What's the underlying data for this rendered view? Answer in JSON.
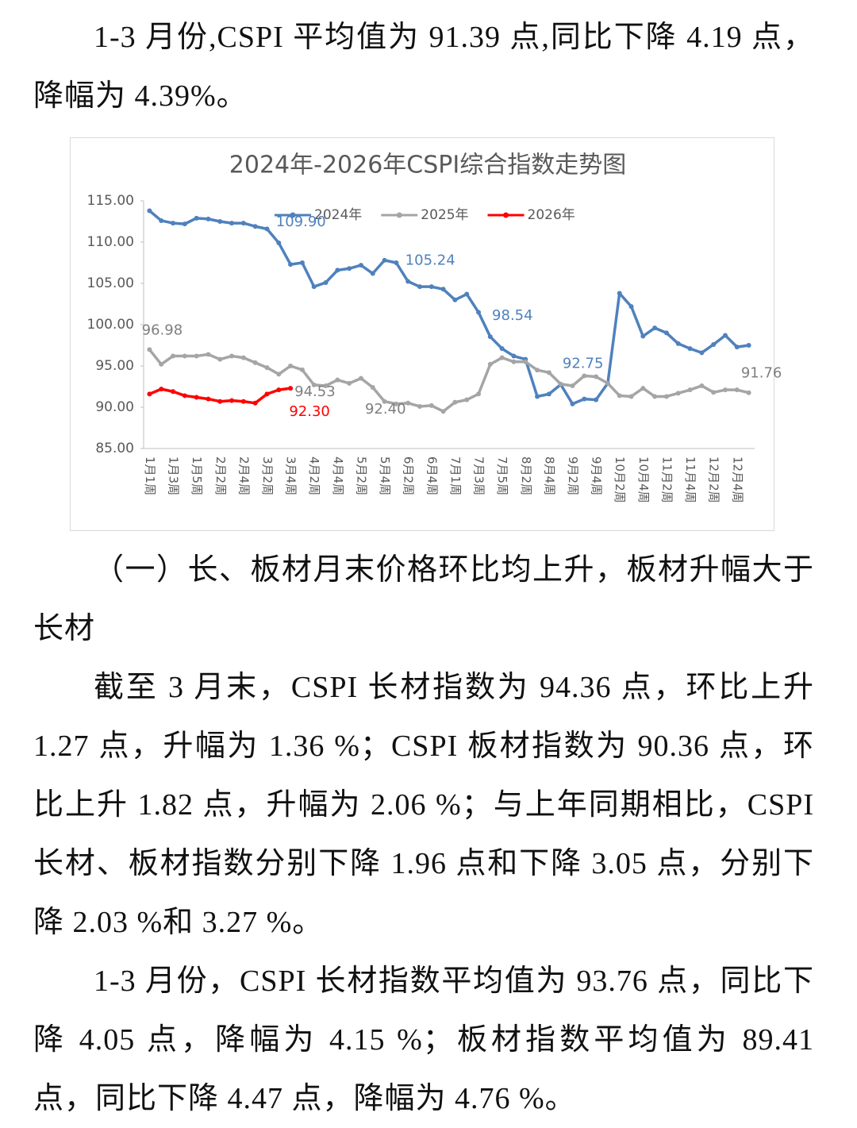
{
  "paragraphs_top": [
    "1-3 月份,CSPI 平均值为 91.39  点,同比下降 4.19 点，降幅为 4.39%。"
  ],
  "chart_data": {
    "type": "line",
    "title": "2024年-2026年CSPI综合指数走势图",
    "categories": [
      "1月1周",
      null,
      "1月3周",
      null,
      "1月5周",
      null,
      "2月2周",
      null,
      "2月4周",
      null,
      "3月2周",
      null,
      "3月4周",
      null,
      "4月2周",
      null,
      "4月4周",
      null,
      "5月2周",
      null,
      "5月4周",
      null,
      "6月2周",
      null,
      "6月4周",
      null,
      "7月1周",
      null,
      "7月3周",
      null,
      "7月5周",
      null,
      "8月2周",
      null,
      "8月4周",
      null,
      "9月2周",
      null,
      "9月4周",
      null,
      "10月2周",
      null,
      "10月4周",
      null,
      "11月2周",
      null,
      "11月4周",
      null,
      "12月2周",
      null,
      "12月4周",
      null
    ],
    "series": [
      {
        "name": "2024年",
        "color": "#4f81bd",
        "values": [
          113.8,
          112.6,
          112.3,
          112.2,
          112.9,
          112.8,
          112.5,
          112.3,
          112.3,
          111.9,
          111.6,
          109.9,
          107.3,
          107.5,
          104.6,
          105.1,
          106.6,
          106.8,
          107.2,
          106.2,
          107.8,
          107.5,
          105.24,
          104.6,
          104.6,
          104.3,
          103.0,
          103.7,
          101.5,
          98.54,
          97.1,
          96.2,
          95.8,
          91.3,
          91.6,
          92.75,
          90.4,
          91.0,
          90.9,
          92.9,
          103.8,
          102.2,
          98.6,
          99.6,
          99.0,
          97.7,
          97.1,
          96.6,
          97.6,
          98.7,
          97.3,
          97.5
        ],
        "value_labels": [
          null,
          null,
          null,
          null,
          null,
          null,
          null,
          null,
          null,
          null,
          null,
          "109.90",
          null,
          null,
          null,
          null,
          null,
          null,
          null,
          null,
          null,
          null,
          "105.24",
          null,
          null,
          null,
          null,
          null,
          null,
          "98.54",
          null,
          null,
          null,
          null,
          null,
          "92.75",
          null,
          null,
          null,
          null,
          null,
          null,
          null,
          null,
          null,
          null,
          null,
          null,
          null,
          null,
          null,
          null
        ]
      },
      {
        "name": "2025年",
        "color": "#a5a5a5",
        "values": [
          96.98,
          95.2,
          96.2,
          96.2,
          96.2,
          96.4,
          95.8,
          96.2,
          96.0,
          95.4,
          94.8,
          94.0,
          95.0,
          94.53,
          92.7,
          92.6,
          93.3,
          92.9,
          93.5,
          92.4,
          90.7,
          90.4,
          90.5,
          90.1,
          90.2,
          89.5,
          90.6,
          90.9,
          91.6,
          95.2,
          96.0,
          95.5,
          95.5,
          94.5,
          94.2,
          92.8,
          92.6,
          93.8,
          93.7,
          92.9,
          91.4,
          91.3,
          92.3,
          91.3,
          91.3,
          91.7,
          92.1,
          92.6,
          91.8,
          92.1,
          92.1,
          91.76
        ],
        "value_labels": [
          "96.98",
          null,
          null,
          null,
          null,
          null,
          null,
          null,
          null,
          null,
          null,
          null,
          null,
          "94.53",
          null,
          null,
          null,
          null,
          null,
          "92.40",
          null,
          null,
          null,
          null,
          null,
          null,
          null,
          null,
          null,
          null,
          null,
          null,
          null,
          null,
          null,
          null,
          null,
          null,
          null,
          null,
          null,
          null,
          null,
          null,
          null,
          null,
          null,
          null,
          null,
          null,
          null,
          "91.76"
        ]
      },
      {
        "name": "2026年",
        "color": "#ff0000",
        "values": [
          91.6,
          92.2,
          91.9,
          91.4,
          91.2,
          91.0,
          90.7,
          90.8,
          90.7,
          90.5,
          91.6,
          92.1,
          92.3,
          null,
          null,
          null,
          null,
          null,
          null,
          null,
          null,
          null,
          null,
          null,
          null,
          null,
          null,
          null,
          null,
          null,
          null,
          null,
          null,
          null,
          null,
          null,
          null,
          null,
          null,
          null,
          null,
          null,
          null,
          null,
          null,
          null,
          null,
          null,
          null,
          null,
          null,
          null
        ],
        "value_labels": [
          null,
          null,
          null,
          null,
          null,
          null,
          null,
          null,
          null,
          null,
          null,
          null,
          "92.30",
          null,
          null,
          null,
          null,
          null,
          null,
          null,
          null,
          null,
          null,
          null,
          null,
          null,
          null,
          null,
          null,
          null,
          null,
          null,
          null,
          null,
          null,
          null,
          null,
          null,
          null,
          null,
          null,
          null,
          null,
          null,
          null,
          null,
          null,
          null,
          null,
          null,
          null,
          null
        ]
      }
    ],
    "ylim": [
      85,
      115
    ],
    "yticks": [
      {
        "value": 85,
        "label": "85.00"
      },
      {
        "value": 90,
        "label": "90.00"
      },
      {
        "value": 95,
        "label": "95.00"
      },
      {
        "value": 100,
        "label": "100.00"
      },
      {
        "value": 105,
        "label": "105.00"
      },
      {
        "value": 110,
        "label": "110.00"
      },
      {
        "value": 115,
        "label": "115.00"
      }
    ],
    "grid": false,
    "legend": "top"
  },
  "paragraphs_bottom": [
    "（一）长、板材月末价格环比均上升，板材升幅大于长材",
    "截至 3 月末，CSPI 长材指数为 94.36  点，环比上升 1.27  点，升幅为 1.36 %；CSPI 板材指数为 90.36 点，环比上升 1.82 点，升幅为 2.06 %；与上年同期相比，CSPI 长材、板材指数分别下降 1.96 点和下降 3.05 点，分别下降 2.03 %和 3.27 %。",
    "1-3 月份，CSPI 长材指数平均值为 93.76 点，同比下降 4.05 点，降幅为 4.15 %；板材指数平均值为 89.41 点，同比下降 4.47 点，降幅为 4.76 %。"
  ]
}
